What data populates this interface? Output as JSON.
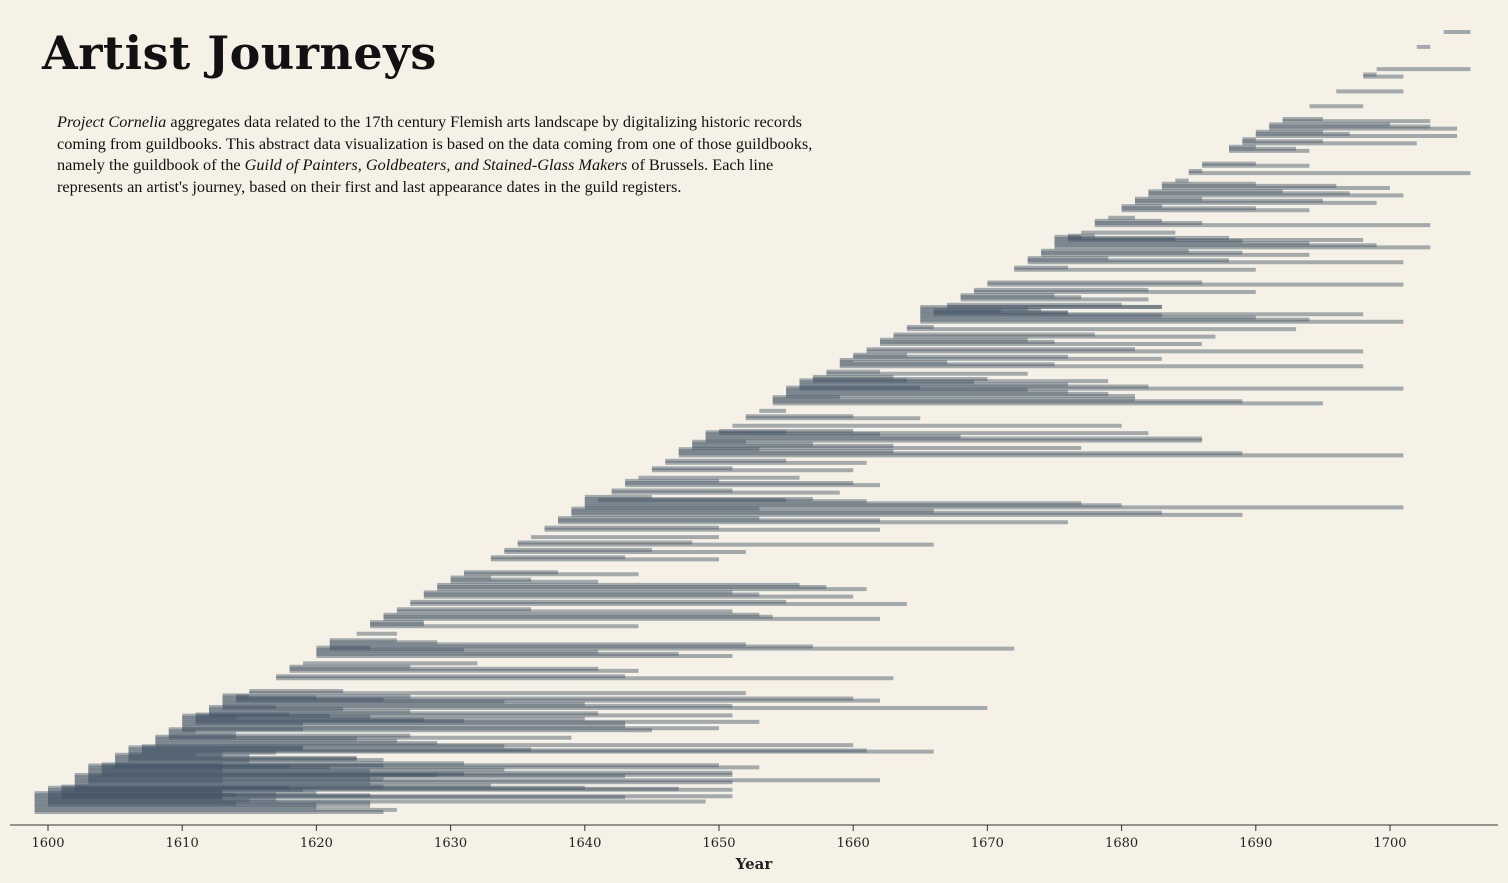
{
  "title": "Artist Journeys",
  "description": {
    "p1_italic": "Project Cornelia",
    "p1_text": " aggregates data related to the 17th century Flemish arts landscape by digitalizing historic records coming from guildbooks. This abstract data visualization is based on the data coming from one of those guildbooks, namely the guildbook of the ",
    "p2_italic": "Guild of Painters, Goldbeaters, and Stained-Glass Makers",
    "p2_text": " of Brussels. Each line represents an artist's journey, based on their first and last appearance dates in the guild registers."
  },
  "colors": {
    "background": "#f5f1e6",
    "line": "#425567",
    "axis": "#333333"
  },
  "chart_data": {
    "type": "range-lines",
    "xlabel": "Year",
    "xlim": [
      1597,
      1708
    ],
    "xticks": [
      1600,
      1610,
      1620,
      1630,
      1640,
      1650,
      1660,
      1670,
      1680,
      1690,
      1700
    ],
    "series": [
      {
        "start": 1599,
        "ends": [
          1625,
          1626,
          1620,
          1624,
          1614,
          1649,
          1617,
          1613,
          1624,
          1613
        ]
      },
      {
        "start": 1600,
        "ends": [
          1620,
          1624,
          1615,
          1613,
          1651,
          1617,
          1613,
          1619,
          1640
        ]
      },
      {
        "start": 1601,
        "ends": [
          1643,
          1614,
          1620,
          1613,
          1647,
          1625
        ]
      },
      {
        "start": 1602,
        "ends": [
          1651,
          1618,
          1633,
          1624,
          1613,
          1625,
          1613,
          1629
        ]
      },
      {
        "start": 1603,
        "ends": [
          1651,
          1662,
          1624,
          1643,
          1631,
          1613,
          1634,
          1621,
          1625
        ]
      },
      {
        "start": 1604,
        "ends": [
          1651,
          1651,
          1624,
          1613,
          1618,
          1613
        ]
      },
      {
        "start": 1605,
        "ends": [
          1653,
          1650,
          1631,
          1615,
          1623,
          1613,
          1611
        ]
      },
      {
        "start": 1606,
        "ends": [
          1625,
          1623,
          1615,
          1613,
          1666,
          1636,
          1619
        ]
      },
      {
        "start": 1607,
        "ends": [
          1617,
          1661,
          1619,
          1634
        ]
      },
      {
        "start": 1608,
        "ends": [
          1660,
          1629,
          1626,
          1623,
          1614
        ]
      },
      {
        "start": 1609,
        "ends": [
          1639,
          1627,
          1614,
          1611,
          1619
        ]
      },
      {
        "start": 1610,
        "ends": [
          1645,
          1650,
          1643,
          1619,
          1653,
          1628,
          1614,
          1621
        ]
      },
      {
        "start": 1611,
        "ends": [
          1643,
          1631,
          1640,
          1624,
          1618
        ]
      },
      {
        "start": 1612,
        "ends": [
          1651,
          1641,
          1627,
          1622,
          1617
        ]
      },
      {
        "start": 1613,
        "ends": [
          1670,
          1651,
          1640,
          1634,
          1625,
          1620,
          1615
        ]
      },
      {
        "start": 1614,
        "ends": [
          1662,
          1660,
          1627
        ]
      },
      {
        "start": 1615,
        "ends": [
          1652,
          1622
        ]
      },
      {
        "start": 1617,
        "ends": [
          1663,
          1643
        ]
      },
      {
        "start": 1618,
        "ends": [
          1644,
          1641,
          1627
        ]
      },
      {
        "start": 1619,
        "ends": [
          1632
        ]
      },
      {
        "start": 1620,
        "ends": [
          1651,
          1647,
          1641,
          1631,
          1624
        ]
      },
      {
        "start": 1621,
        "ends": [
          1672,
          1657,
          1652,
          1629,
          1626
        ]
      },
      {
        "start": 1623,
        "ends": [
          1626
        ]
      },
      {
        "start": 1624,
        "ends": [
          1644,
          1628,
          1628
        ]
      },
      {
        "start": 1625,
        "ends": [
          1662,
          1654,
          1653
        ]
      },
      {
        "start": 1626,
        "ends": [
          1651,
          1636
        ]
      },
      {
        "start": 1627,
        "ends": [
          1664,
          1655
        ]
      },
      {
        "start": 1628,
        "ends": [
          1660,
          1653,
          1651
        ]
      },
      {
        "start": 1629,
        "ends": [
          1661,
          1658,
          1656
        ]
      },
      {
        "start": 1630,
        "ends": [
          1641,
          1636,
          1633
        ]
      },
      {
        "start": 1631,
        "ends": [
          1644,
          1638
        ]
      },
      {
        "start": 1633,
        "ends": [
          1650,
          1643
        ]
      },
      {
        "start": 1634,
        "ends": [
          1652,
          1645
        ]
      },
      {
        "start": 1635,
        "ends": [
          1666,
          1648
        ]
      },
      {
        "start": 1636,
        "ends": [
          1650
        ]
      },
      {
        "start": 1637,
        "ends": [
          1662,
          1650
        ]
      },
      {
        "start": 1638,
        "ends": [
          1676,
          1662,
          1653
        ]
      },
      {
        "start": 1639,
        "ends": [
          1689,
          1683,
          1666,
          1653
        ]
      },
      {
        "start": 1640,
        "ends": [
          1701,
          1680,
          1677,
          1661,
          1657,
          1645
        ]
      },
      {
        "start": 1641,
        "ends": [
          1655
        ]
      },
      {
        "start": 1642,
        "ends": [
          1659,
          1651
        ]
      },
      {
        "start": 1643,
        "ends": [
          1662,
          1660,
          1650
        ]
      },
      {
        "start": 1644,
        "ends": [
          1656
        ]
      },
      {
        "start": 1645,
        "ends": [
          1660,
          1651
        ]
      },
      {
        "start": 1646,
        "ends": [
          1661,
          1655
        ]
      },
      {
        "start": 1647,
        "ends": [
          1701,
          1689,
          1663,
          1653
        ]
      },
      {
        "start": 1648,
        "ends": [
          1677,
          1663,
          1657,
          1652
        ]
      },
      {
        "start": 1649,
        "ends": [
          1686,
          1686,
          1668,
          1662,
          1655
        ]
      },
      {
        "start": 1650,
        "ends": [
          1682,
          1660
        ]
      },
      {
        "start": 1651,
        "ends": [
          1680
        ]
      },
      {
        "start": 1652,
        "ends": [
          1665,
          1660
        ]
      },
      {
        "start": 1653,
        "ends": [
          1655
        ]
      },
      {
        "start": 1654,
        "ends": [
          1695,
          1689,
          1681,
          1659
        ]
      },
      {
        "start": 1655,
        "ends": [
          1681,
          1679,
          1676,
          1673,
          1665
        ]
      },
      {
        "start": 1656,
        "ends": [
          1701,
          1682,
          1676,
          1669,
          1664
        ]
      },
      {
        "start": 1657,
        "ends": [
          1679,
          1670,
          1663
        ]
      },
      {
        "start": 1658,
        "ends": [
          1673,
          1662
        ]
      },
      {
        "start": 1659,
        "ends": [
          1698,
          1675,
          1667,
          1660
        ]
      },
      {
        "start": 1660,
        "ends": [
          1683,
          1676,
          1664
        ]
      },
      {
        "start": 1661,
        "ends": [
          1698,
          1681
        ]
      },
      {
        "start": 1662,
        "ends": [
          1686,
          1675,
          1673
        ]
      },
      {
        "start": 1663,
        "ends": [
          1687,
          1678
        ]
      },
      {
        "start": 1664,
        "ends": [
          1693,
          1666
        ]
      },
      {
        "start": 1665,
        "ends": [
          1701,
          1694,
          1690,
          1683,
          1676,
          1671,
          1673,
          1683
        ]
      },
      {
        "start": 1666,
        "ends": [
          1698,
          1676,
          1674
        ]
      },
      {
        "start": 1667,
        "ends": [
          1683,
          1680
        ]
      },
      {
        "start": 1668,
        "ends": [
          1682,
          1677,
          1675
        ]
      },
      {
        "start": 1669,
        "ends": [
          1690,
          1682
        ]
      },
      {
        "start": 1670,
        "ends": [
          1701,
          1686
        ]
      },
      {
        "start": 1672,
        "ends": [
          1690,
          1676
        ]
      },
      {
        "start": 1673,
        "ends": [
          1701,
          1688,
          1679
        ]
      },
      {
        "start": 1674,
        "ends": [
          1694,
          1689,
          1685
        ]
      },
      {
        "start": 1675,
        "ends": [
          1703,
          1699,
          1694,
          1689,
          1684,
          1677
        ]
      },
      {
        "start": 1676,
        "ends": [
          1698,
          1688,
          1678
        ]
      },
      {
        "start": 1677,
        "ends": [
          1684
        ]
      },
      {
        "start": 1678,
        "ends": [
          1703,
          1686,
          1683
        ]
      },
      {
        "start": 1679,
        "ends": [
          1681
        ]
      },
      {
        "start": 1680,
        "ends": [
          1694,
          1690,
          1683
        ]
      },
      {
        "start": 1681,
        "ends": [
          1699,
          1695,
          1686
        ]
      },
      {
        "start": 1682,
        "ends": [
          1701,
          1697,
          1692,
          1682
        ]
      },
      {
        "start": 1683,
        "ends": [
          1700,
          1696,
          1690
        ]
      },
      {
        "start": 1684,
        "ends": [
          1685
        ]
      },
      {
        "start": 1685,
        "ends": [
          1706,
          1686
        ]
      },
      {
        "start": 1686,
        "ends": [
          1694,
          1690
        ]
      },
      {
        "start": 1688,
        "ends": [
          1694,
          1693,
          1690
        ]
      },
      {
        "start": 1689,
        "ends": [
          1702,
          1695,
          1690
        ]
      },
      {
        "start": 1690,
        "ends": [
          1705,
          1697,
          1695
        ]
      },
      {
        "start": 1691,
        "ends": [
          1705,
          1703,
          1700
        ]
      },
      {
        "start": 1692,
        "ends": [
          1703,
          1695
        ]
      },
      {
        "start": 1694,
        "ends": [
          1698
        ]
      },
      {
        "start": 1696,
        "ends": [
          1701
        ]
      },
      {
        "start": 1698,
        "ends": [
          1701,
          1699
        ]
      },
      {
        "start": 1699,
        "ends": [
          1706
        ]
      },
      {
        "start": 1702,
        "ends": [
          1703
        ]
      },
      {
        "start": 1704,
        "ends": [
          1706
        ]
      }
    ]
  }
}
